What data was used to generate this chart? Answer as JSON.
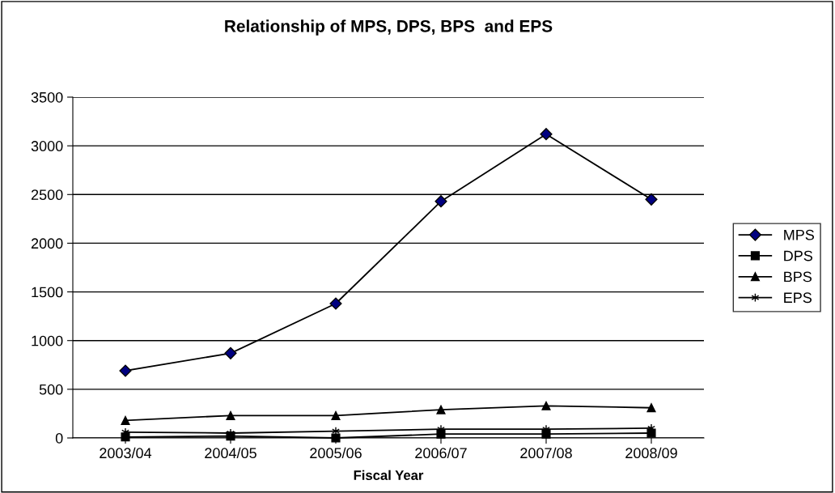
{
  "chart_data": {
    "type": "line",
    "title": "Relationship of MPS, DPS, BPS  and EPS",
    "xlabel": "Fiscal Year",
    "categories": [
      "2003/04",
      "2004/05",
      "2005/06",
      "2006/07",
      "2007/08",
      "2008/09"
    ],
    "series": [
      {
        "name": "MPS",
        "color": "#000080",
        "marker": "diamond",
        "values": [
          690,
          870,
          1380,
          2430,
          3120,
          2450
        ]
      },
      {
        "name": "DPS",
        "color": "#000000",
        "marker": "square",
        "values": [
          10,
          20,
          0,
          40,
          40,
          50
        ]
      },
      {
        "name": "BPS",
        "color": "#000000",
        "marker": "triangle",
        "values": [
          180,
          230,
          230,
          290,
          330,
          310
        ]
      },
      {
        "name": "EPS",
        "color": "#000000",
        "marker": "cross",
        "values": [
          60,
          50,
          70,
          90,
          90,
          100
        ]
      }
    ],
    "ylim": [
      0,
      3500
    ],
    "yticks": [
      0,
      500,
      1000,
      1500,
      2000,
      2500,
      3000,
      3500
    ],
    "grid": "y",
    "legend": "right"
  }
}
